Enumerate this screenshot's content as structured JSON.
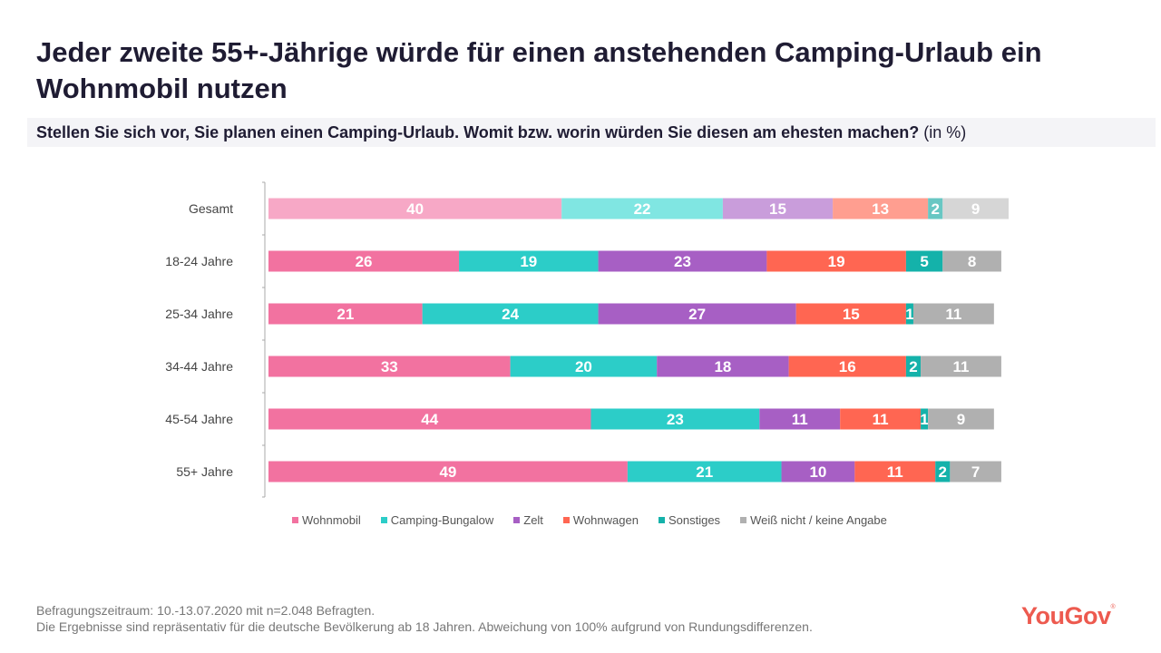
{
  "header": {
    "title": "Jeder zweite 55+-Jährige würde für einen anstehenden Camping-Urlaub ein Wohnmobil nutzen",
    "question": "Stellen Sie sich vor, Sie planen einen Camping-Urlaub. Womit bzw. worin würden Sie diesen am ehesten machen?",
    "unit": "(in %)"
  },
  "chart_data": {
    "type": "bar",
    "orientation": "horizontal",
    "stacked": true,
    "title": "Stellen Sie sich vor, Sie planen einen Camping-Urlaub. Womit bzw. worin würden Sie diesen am ehesten machen? (in %)",
    "xlabel": "",
    "ylabel": "",
    "xlim": [
      0,
      101
    ],
    "grid": false,
    "legend_position": "bottom",
    "categories": [
      "Gesamt",
      "18-24 Jahre",
      "25-34 Jahre",
      "34-44 Jahre",
      "45-54 Jahre",
      "55+ Jahre"
    ],
    "series": [
      {
        "name": "Wohnmobil",
        "color": "#f272a0",
        "values": [
          40,
          26,
          21,
          33,
          44,
          49
        ]
      },
      {
        "name": "Camping-Bungalow",
        "color": "#2ccdc8",
        "values": [
          22,
          19,
          24,
          20,
          23,
          21
        ]
      },
      {
        "name": "Zelt",
        "color": "#a75fc4",
        "values": [
          15,
          23,
          27,
          18,
          11,
          10
        ]
      },
      {
        "name": "Wohnwagen",
        "color": "#ff6652",
        "values": [
          13,
          19,
          15,
          16,
          11,
          11
        ]
      },
      {
        "name": "Sonstiges",
        "color": "#14b2aa",
        "values": [
          2,
          5,
          1,
          2,
          1,
          2
        ]
      },
      {
        "name": "Weiß nicht / keine Angabe",
        "color": "#b0b0b0",
        "values": [
          9,
          8,
          11,
          11,
          9,
          7
        ]
      }
    ],
    "highlight_category": "Gesamt",
    "highlight_colors": [
      "#f7a8c6",
      "#80e6e2",
      "#c99ddb",
      "#ff9e90",
      "#68c7c3",
      "#d6d6d6"
    ]
  },
  "footer": {
    "line1": "Befragungszeitraum: 10.-13.07.2020 mit n=2.048 Befragten.",
    "line2": "Die Ergebnisse sind repräsentativ für die deutsche Bevölkerung ab 18 Jahren. Abweichung von 100% aufgrund von Rundungsdifferenzen."
  },
  "brand": {
    "logo_text": "YouGov",
    "registered_mark": "®",
    "color": "#ed5a4f"
  }
}
